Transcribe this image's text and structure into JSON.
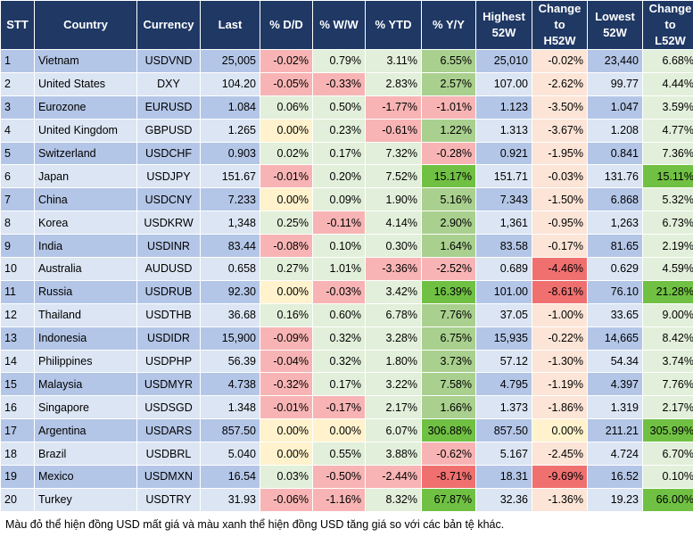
{
  "colors": {
    "header_bg": "#1f3864",
    "row_odd": "#b4c6e7",
    "row_even": "#dbe5f3",
    "up_light": "#e2efda",
    "up_mid": "#a9d08e",
    "up_strong": "#70c143",
    "down_light": "#fce4d6",
    "down_mid": "#f8b4b4",
    "down_strong": "#f07070",
    "zero": "#fff2cc"
  },
  "columns": [
    {
      "key": "stt",
      "label": "STT"
    },
    {
      "key": "country",
      "label": "Country"
    },
    {
      "key": "currency",
      "label": "Currency"
    },
    {
      "key": "last",
      "label": "Last"
    },
    {
      "key": "dd",
      "label": "% D/D"
    },
    {
      "key": "ww",
      "label": "% W/W"
    },
    {
      "key": "ytd",
      "label": "% YTD"
    },
    {
      "key": "yy",
      "label": "% Y/Y"
    },
    {
      "key": "high",
      "label": "Highest\n52W"
    },
    {
      "key": "chh",
      "label": "Change\nto\nH52W"
    },
    {
      "key": "low",
      "label": "Lowest\n52W"
    },
    {
      "key": "chl",
      "label": "Change\nto\nL52W"
    }
  ],
  "rows": [
    {
      "stt": "1",
      "country": "Vietnam",
      "currency": "USDVND",
      "last": "25,005",
      "dd": "-0.02%",
      "ww": "0.79%",
      "ytd": "3.11%",
      "yy": "6.55%",
      "high": "25,010",
      "chh": "-0.02%",
      "low": "23,440",
      "chl": "6.68%"
    },
    {
      "stt": "2",
      "country": "United States",
      "currency": "DXY",
      "last": "104.20",
      "dd": "-0.05%",
      "ww": "-0.33%",
      "ytd": "2.83%",
      "yy": "2.57%",
      "high": "107.00",
      "chh": "-2.62%",
      "low": "99.77",
      "chl": "4.44%"
    },
    {
      "stt": "3",
      "country": "Eurozone",
      "currency": "EURUSD",
      "last": "1.084",
      "dd": "0.06%",
      "ww": "0.50%",
      "ytd": "-1.77%",
      "yy": "-1.01%",
      "high": "1.123",
      "chh": "-3.50%",
      "low": "1.047",
      "chl": "3.59%"
    },
    {
      "stt": "4",
      "country": "United Kingdom",
      "currency": "GBPUSD",
      "last": "1.265",
      "dd": "0.00%",
      "ww": "0.23%",
      "ytd": "-0.61%",
      "yy": "1.22%",
      "high": "1.313",
      "chh": "-3.67%",
      "low": "1.208",
      "chl": "4.77%"
    },
    {
      "stt": "5",
      "country": "Switzerland",
      "currency": "USDCHF",
      "last": "0.903",
      "dd": "0.02%",
      "ww": "0.17%",
      "ytd": "7.32%",
      "yy": "-0.28%",
      "high": "0.921",
      "chh": "-1.95%",
      "low": "0.841",
      "chl": "7.36%"
    },
    {
      "stt": "6",
      "country": "Japan",
      "currency": "USDJPY",
      "last": "151.67",
      "dd": "-0.01%",
      "ww": "0.20%",
      "ytd": "7.52%",
      "yy": "15.17%",
      "high": "151.71",
      "chh": "-0.03%",
      "low": "131.76",
      "chl": "15.11%"
    },
    {
      "stt": "7",
      "country": "China",
      "currency": "USDCNY",
      "last": "7.233",
      "dd": "0.00%",
      "ww": "0.09%",
      "ytd": "1.90%",
      "yy": "5.16%",
      "high": "7.343",
      "chh": "-1.50%",
      "low": "6.868",
      "chl": "5.32%"
    },
    {
      "stt": "8",
      "country": "Korea",
      "currency": "USDKRW",
      "last": "1,348",
      "dd": "0.25%",
      "ww": "-0.11%",
      "ytd": "4.14%",
      "yy": "2.90%",
      "high": "1,361",
      "chh": "-0.95%",
      "low": "1,263",
      "chl": "6.73%"
    },
    {
      "stt": "9",
      "country": "India",
      "currency": "USDINR",
      "last": "83.44",
      "dd": "-0.08%",
      "ww": "0.10%",
      "ytd": "0.30%",
      "yy": "1.64%",
      "high": "83.58",
      "chh": "-0.17%",
      "low": "81.65",
      "chl": "2.19%"
    },
    {
      "stt": "10",
      "country": "Australia",
      "currency": "AUDUSD",
      "last": "0.658",
      "dd": "0.27%",
      "ww": "1.01%",
      "ytd": "-3.36%",
      "yy": "-2.52%",
      "high": "0.689",
      "chh": "-4.46%",
      "low": "0.629",
      "chl": "4.59%"
    },
    {
      "stt": "11",
      "country": "Russia",
      "currency": "USDRUB",
      "last": "92.30",
      "dd": "0.00%",
      "ww": "-0.03%",
      "ytd": "3.42%",
      "yy": "16.39%",
      "high": "101.00",
      "chh": "-8.61%",
      "low": "76.10",
      "chl": "21.28%"
    },
    {
      "stt": "12",
      "country": "Thailand",
      "currency": "USDTHB",
      "last": "36.68",
      "dd": "0.16%",
      "ww": "0.60%",
      "ytd": "6.78%",
      "yy": "7.76%",
      "high": "37.05",
      "chh": "-1.00%",
      "low": "33.65",
      "chl": "9.00%"
    },
    {
      "stt": "13",
      "country": "Indonesia",
      "currency": "USDIDR",
      "last": "15,900",
      "dd": "-0.09%",
      "ww": "0.32%",
      "ytd": "3.28%",
      "yy": "6.75%",
      "high": "15,935",
      "chh": "-0.22%",
      "low": "14,665",
      "chl": "8.42%"
    },
    {
      "stt": "14",
      "country": "Philippines",
      "currency": "USDPHP",
      "last": "56.39",
      "dd": "-0.04%",
      "ww": "0.32%",
      "ytd": "1.80%",
      "yy": "3.73%",
      "high": "57.12",
      "chh": "-1.30%",
      "low": "54.34",
      "chl": "3.74%"
    },
    {
      "stt": "15",
      "country": "Malaysia",
      "currency": "USDMYR",
      "last": "4.738",
      "dd": "-0.32%",
      "ww": "0.17%",
      "ytd": "3.22%",
      "yy": "7.58%",
      "high": "4.795",
      "chh": "-1.19%",
      "low": "4.397",
      "chl": "7.76%"
    },
    {
      "stt": "16",
      "country": "Singapore",
      "currency": "USDSGD",
      "last": "1.348",
      "dd": "-0.01%",
      "ww": "-0.17%",
      "ytd": "2.17%",
      "yy": "1.66%",
      "high": "1.373",
      "chh": "-1.86%",
      "low": "1.319",
      "chl": "2.17%"
    },
    {
      "stt": "17",
      "country": "Argentina",
      "currency": "USDARS",
      "last": "857.50",
      "dd": "0.00%",
      "ww": "0.00%",
      "ytd": "6.07%",
      "yy": "306.88%",
      "high": "857.50",
      "chh": "0.00%",
      "low": "211.21",
      "chl": "305.99%"
    },
    {
      "stt": "18",
      "country": "Brazil",
      "currency": "USDBRL",
      "last": "5.040",
      "dd": "0.00%",
      "ww": "0.55%",
      "ytd": "3.88%",
      "yy": "-0.62%",
      "high": "5.167",
      "chh": "-2.45%",
      "low": "4.724",
      "chl": "6.70%"
    },
    {
      "stt": "19",
      "country": "Mexico",
      "currency": "USDMXN",
      "last": "16.54",
      "dd": "0.03%",
      "ww": "-0.50%",
      "ytd": "-2.44%",
      "yy": "-8.71%",
      "high": "18.31",
      "chh": "-9.69%",
      "low": "16.52",
      "chl": "0.10%"
    },
    {
      "stt": "20",
      "country": "Turkey",
      "currency": "USDTRY",
      "last": "31.93",
      "dd": "-0.06%",
      "ww": "-1.16%",
      "ytd": "8.32%",
      "yy": "67.87%",
      "high": "32.36",
      "chh": "-1.36%",
      "low": "19.23",
      "chl": "66.00%"
    }
  ],
  "caption": "Màu đỏ thể hiện đồng USD mất giá và màu xanh thể hiện đồng USD tăng giá so với các bản tệ khác."
}
